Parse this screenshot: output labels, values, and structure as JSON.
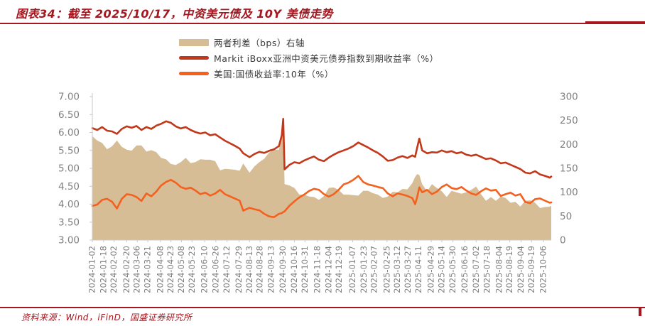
{
  "header": {
    "title": "图表34：截至 2025/10/17，中资美元债及 10Y 美债走势"
  },
  "footer": {
    "source": "资料来源：Wind，iFinD，国盛证券研究所"
  },
  "colors": {
    "accent_red": "#a6161f",
    "line_dark_red": "#c2381a",
    "line_orange": "#f4611f",
    "area_tan": "#d7bd95",
    "axis_text": "#808080",
    "axis_line": "#c9c9c9",
    "legend_text": "#3a3a3a"
  },
  "chart_data": {
    "type": "line+area",
    "title": "截至 2025/10/17，中资美元债及 10Y 美债走势",
    "legend_position": "top-center",
    "grid": false,
    "y_left": {
      "min": 3.0,
      "max": 7.0,
      "ticks": [
        "7.00",
        "6.50",
        "6.00",
        "5.50",
        "5.00",
        "4.50",
        "4.00",
        "3.50",
        "3.00"
      ]
    },
    "y_right": {
      "min": 0,
      "max": 300,
      "ticks": [
        "300",
        "250",
        "200",
        "150",
        "100",
        "50",
        "0"
      ]
    },
    "x_range_days": [
      0,
      654
    ],
    "x_tick_days": [
      0,
      16,
      31,
      49,
      64,
      79,
      97,
      112,
      127,
      142,
      160,
      176,
      192,
      209,
      224,
      239,
      255,
      272,
      288,
      303,
      321,
      337,
      352,
      371,
      387,
      402,
      420,
      435,
      450,
      465,
      483,
      498,
      514,
      531,
      547,
      563,
      580,
      595,
      611,
      626,
      643
    ],
    "x_tick_labels": [
      "2024-01-02",
      "2024-01-18",
      "2024-02-02",
      "2024-02-20",
      "2024-03-06",
      "2024-03-21",
      "2024-04-08",
      "2024-04-23",
      "2024-05-08",
      "2024-05-23",
      "2024-06-10",
      "2024-06-26",
      "2024-07-12",
      "2024-07-29",
      "2024-08-13",
      "2024-08-28",
      "2024-09-13",
      "2024-09-30",
      "2024-10-16",
      "2024-10-31",
      "2024-11-18",
      "2024-12-04",
      "2024-12-19",
      "2025-01-07",
      "2025-01-23",
      "2025-02-07",
      "2025-02-25",
      "2025-03-12",
      "2025-03-27",
      "2025-04-11",
      "2025-04-29",
      "2025-05-14",
      "2025-05-30",
      "2025-06-16",
      "2025-07-02",
      "2025-07-18",
      "2025-08-04",
      "2025-08-19",
      "2025-09-04",
      "2025-09-19",
      "2025-10-06"
    ],
    "x_days": [
      0,
      7,
      14,
      21,
      28,
      35,
      42,
      49,
      56,
      63,
      70,
      77,
      84,
      91,
      98,
      105,
      112,
      119,
      126,
      133,
      140,
      147,
      154,
      161,
      168,
      175,
      182,
      189,
      196,
      203,
      210,
      215,
      224,
      231,
      238,
      245,
      252,
      259,
      266,
      270,
      272,
      274,
      281,
      288,
      295,
      302,
      309,
      316,
      323,
      330,
      337,
      344,
      351,
      358,
      365,
      372,
      379,
      386,
      393,
      400,
      407,
      414,
      421,
      428,
      435,
      442,
      449,
      456,
      460,
      463,
      466,
      470,
      477,
      484,
      491,
      498,
      505,
      512,
      519,
      526,
      533,
      540,
      547,
      554,
      561,
      568,
      575,
      582,
      589,
      596,
      603,
      610,
      617,
      624,
      631,
      638,
      645,
      652,
      654
    ],
    "series": [
      {
        "key": "spread",
        "name": "两者利差（bps）右轴",
        "axis": "right",
        "type": "area",
        "color_key": "area_tan",
        "values": [
          217,
          208,
          203,
          190,
          196,
          208,
          195,
          189,
          187,
          198,
          198,
          185,
          188,
          184,
          172,
          169,
          159,
          157,
          163,
          172,
          161,
          163,
          169,
          168,
          168,
          165,
          146,
          149,
          148,
          147,
          145,
          160,
          141,
          154,
          163,
          170,
          183,
          189,
          189,
          217,
          260,
          117,
          114,
          109,
          95,
          95,
          91,
          90,
          84,
          92,
          109,
          110,
          105,
          95,
          95,
          94,
          93,
          103,
          103,
          98,
          95,
          88,
          91,
          101,
          100,
          107,
          106,
          119,
          132,
          138,
          136,
          117,
          102,
          117,
          109,
          102,
          90,
          103,
          100,
          97,
          100,
          105,
          112,
          96,
          82,
          90,
          82,
          91,
          88,
          78,
          80,
          70,
          82,
          83,
          78,
          67,
          69,
          70,
          72
        ]
      },
      {
        "key": "iboxx-yield",
        "name": "Markit iBoxx亚洲中资美元债券指数到期收益率（%）",
        "axis": "left",
        "type": "line",
        "color_key": "line_dark_red",
        "values": [
          6.12,
          6.07,
          6.15,
          6.05,
          6.03,
          5.96,
          6.1,
          6.17,
          6.13,
          6.18,
          6.07,
          6.15,
          6.1,
          6.19,
          6.24,
          6.31,
          6.27,
          6.17,
          6.11,
          6.15,
          6.07,
          6.01,
          5.97,
          6.0,
          5.92,
          5.95,
          5.86,
          5.77,
          5.7,
          5.63,
          5.55,
          5.42,
          5.31,
          5.4,
          5.46,
          5.43,
          5.49,
          5.53,
          5.62,
          5.92,
          6.38,
          4.97,
          5.1,
          5.17,
          5.14,
          5.22,
          5.28,
          5.33,
          5.24,
          5.2,
          5.3,
          5.38,
          5.45,
          5.5,
          5.55,
          5.62,
          5.72,
          5.65,
          5.58,
          5.5,
          5.43,
          5.33,
          5.21,
          5.23,
          5.3,
          5.34,
          5.29,
          5.36,
          5.32,
          5.58,
          5.83,
          5.5,
          5.42,
          5.45,
          5.44,
          5.5,
          5.45,
          5.48,
          5.42,
          5.45,
          5.38,
          5.35,
          5.38,
          5.32,
          5.26,
          5.28,
          5.22,
          5.14,
          5.16,
          5.1,
          5.04,
          4.98,
          4.88,
          4.86,
          4.92,
          4.83,
          4.79,
          4.74,
          4.77
        ]
      },
      {
        "key": "ust10y",
        "name": "美国:国债收益率:10年（%）",
        "axis": "left",
        "type": "line",
        "color_key": "line_orange",
        "values": [
          3.95,
          3.99,
          4.12,
          4.15,
          4.07,
          3.88,
          4.15,
          4.28,
          4.26,
          4.2,
          4.09,
          4.3,
          4.22,
          4.35,
          4.52,
          4.62,
          4.68,
          4.6,
          4.48,
          4.43,
          4.46,
          4.38,
          4.28,
          4.32,
          4.24,
          4.3,
          4.4,
          4.28,
          4.22,
          4.16,
          4.1,
          3.82,
          3.9,
          3.86,
          3.83,
          3.73,
          3.66,
          3.64,
          3.73,
          3.75,
          3.78,
          3.8,
          3.96,
          4.08,
          4.19,
          4.27,
          4.37,
          4.43,
          4.4,
          4.28,
          4.21,
          4.28,
          4.4,
          4.55,
          4.6,
          4.68,
          4.79,
          4.62,
          4.55,
          4.52,
          4.48,
          4.45,
          4.3,
          4.22,
          4.3,
          4.27,
          4.23,
          4.17,
          4.0,
          4.2,
          4.47,
          4.33,
          4.4,
          4.28,
          4.35,
          4.48,
          4.55,
          4.45,
          4.42,
          4.48,
          4.38,
          4.3,
          4.26,
          4.36,
          4.44,
          4.38,
          4.4,
          4.23,
          4.28,
          4.32,
          4.24,
          4.28,
          4.06,
          4.03,
          4.14,
          4.16,
          4.1,
          4.04,
          4.05
        ]
      }
    ]
  }
}
